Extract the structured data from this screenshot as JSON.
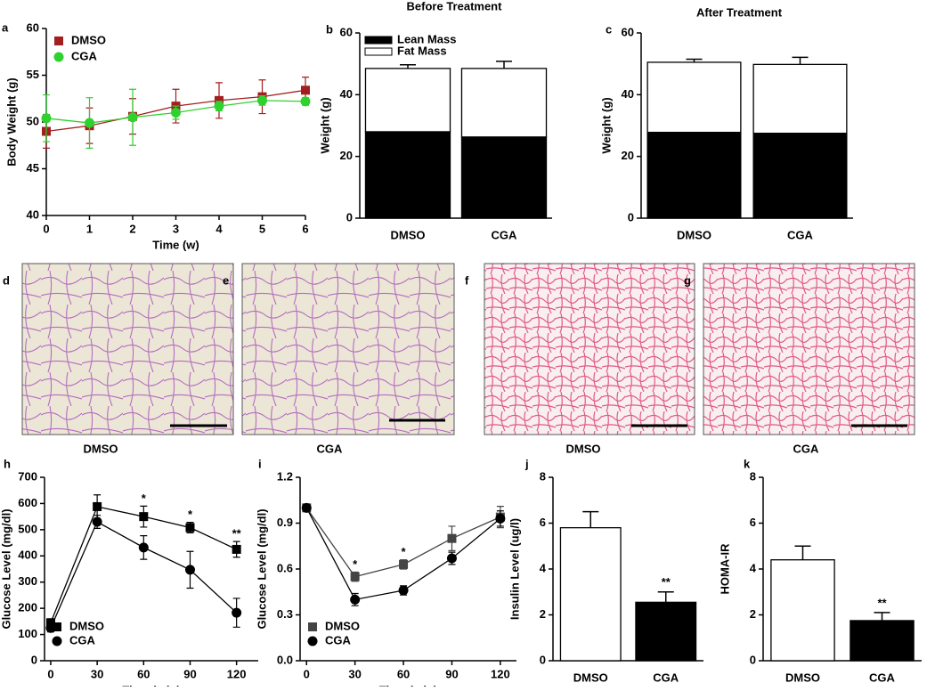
{
  "chart_data": [
    {
      "type": "line",
      "panel": "a",
      "ylabel": "Body Weight (g)",
      "xlabel": "Time (w)",
      "x": [
        0,
        1,
        2,
        3,
        4,
        5,
        6
      ],
      "xlim": [
        0,
        6
      ],
      "xticks": [
        0,
        1,
        2,
        3,
        4,
        5,
        6
      ],
      "ylim": [
        40,
        60
      ],
      "yticks": [
        40,
        45,
        50,
        55,
        60
      ],
      "legend": "upper-left",
      "series": [
        {
          "name": "DMSO",
          "color": "#a31f1f",
          "marker": "square",
          "values": [
            49,
            49.6,
            50.6,
            51.7,
            52.3,
            52.7,
            53.4
          ],
          "errors": [
            1.8,
            1.9,
            1.9,
            1.8,
            1.9,
            1.8,
            1.4
          ]
        },
        {
          "name": "CGA",
          "color": "#2fd12f",
          "marker": "circle",
          "values": [
            50.4,
            49.9,
            50.5,
            51,
            51.7,
            52.3,
            52.2
          ],
          "errors": [
            2.5,
            2.7,
            3,
            0.7,
            0.5,
            0.5,
            0.4
          ]
        }
      ]
    },
    {
      "type": "stacked-bar",
      "panel": "b",
      "title": "Before Treatment",
      "ylabel": "Weight (g)",
      "categories": [
        "DMSO",
        "CGA"
      ],
      "ylim": [
        0,
        60
      ],
      "yticks": [
        0,
        20,
        40,
        60
      ],
      "legend": "upper-left",
      "series": [
        {
          "name": "Lean Mass",
          "color": "#000000",
          "values": [
            28,
            26.3
          ],
          "errors": [
            1.5,
            1.2
          ]
        },
        {
          "name": "Fat Mass",
          "color": "#ffffff",
          "values": [
            20.5,
            22.2
          ],
          "errors": [
            1.2,
            2.3
          ]
        }
      ]
    },
    {
      "type": "stacked-bar",
      "panel": "c",
      "title": "After Treatment",
      "ylabel": "Weight (g)",
      "categories": [
        "DMSO",
        "CGA"
      ],
      "ylim": [
        0,
        60
      ],
      "yticks": [
        0,
        20,
        40,
        60
      ],
      "series": [
        {
          "name": "Lean Mass",
          "color": "#000000",
          "values": [
            27.8,
            27.5
          ],
          "errors": [
            1,
            1.3
          ]
        },
        {
          "name": "Fat Mass",
          "color": "#ffffff",
          "values": [
            22.7,
            22.3
          ],
          "errors": [
            1,
            2.3
          ]
        }
      ]
    },
    {
      "type": "line",
      "panel": "h",
      "ylabel": "Glucose Level (mg/dl)",
      "xlabel": "Time (min)",
      "x": [
        0,
        30,
        60,
        90,
        120
      ],
      "xlim": [
        -4,
        134
      ],
      "xticks": [
        0,
        30,
        60,
        90,
        120
      ],
      "ylim": [
        0,
        700
      ],
      "yticks": [
        0,
        100,
        200,
        300,
        400,
        500,
        600,
        700
      ],
      "legend": "lower-left",
      "significance": [
        null,
        null,
        "*",
        "*",
        "**"
      ],
      "series": [
        {
          "name": "DMSO",
          "color": "#000000",
          "marker": "square",
          "values": [
            145,
            588,
            550,
            508,
            425
          ],
          "errors": [
            15,
            45,
            40,
            20,
            30
          ]
        },
        {
          "name": "CGA",
          "color": "#000000",
          "marker": "circle",
          "values": [
            125,
            530,
            432,
            347,
            183
          ],
          "errors": [
            15,
            25,
            45,
            70,
            55
          ]
        }
      ]
    },
    {
      "type": "line",
      "panel": "i",
      "ylabel": "Glucose Level (mg/dl)",
      "xlabel": "Time (min)",
      "x": [
        0,
        30,
        60,
        90,
        120
      ],
      "xlim": [
        -4,
        130
      ],
      "xticks": [
        0,
        30,
        60,
        90,
        120
      ],
      "ylim": [
        0,
        1.2
      ],
      "yticks": [
        {
          "value": 0,
          "label": "0.0"
        },
        0.3,
        0.6,
        0.9,
        1.2
      ],
      "legend": "lower-left",
      "significance": [
        null,
        "*",
        "*",
        null,
        null
      ],
      "series": [
        {
          "name": "DMSO",
          "color": "#444444",
          "marker": "square",
          "values": [
            1,
            0.55,
            0.63,
            0.8,
            0.94
          ],
          "errors": [
            0.02,
            0.03,
            0.03,
            0.08,
            0.07
          ]
        },
        {
          "name": "CGA",
          "color": "#000000",
          "marker": "circle",
          "values": [
            1,
            0.4,
            0.46,
            0.67,
            0.93
          ],
          "errors": [
            0.02,
            0.04,
            0.03,
            0.04,
            0.05
          ]
        }
      ]
    },
    {
      "type": "bar",
      "panel": "j",
      "ylabel": "Insulin Level (ug/l)",
      "categories": [
        "DMSO",
        "CGA"
      ],
      "values": [
        5.8,
        2.55
      ],
      "errors": [
        0.7,
        0.45
      ],
      "colors": [
        "#ffffff",
        "#000000"
      ],
      "significance": [
        null,
        "**"
      ],
      "ylim": [
        0,
        8
      ],
      "yticks": [
        0,
        2,
        4,
        6,
        8
      ]
    },
    {
      "type": "bar",
      "panel": "k",
      "ylabel": "HOMA-IR",
      "categories": [
        "DMSO",
        "CGA"
      ],
      "values": [
        4.4,
        1.75
      ],
      "errors": [
        0.6,
        0.35
      ],
      "colors": [
        "#ffffff",
        "#000000"
      ],
      "significance": [
        null,
        "**"
      ],
      "ylim": [
        0,
        8
      ],
      "yticks": [
        0,
        2,
        4,
        6,
        8
      ]
    }
  ],
  "images": [
    {
      "panel": "d",
      "caption": "DMSO"
    },
    {
      "panel": "e",
      "caption": "CGA"
    },
    {
      "panel": "f",
      "caption": "DMSO"
    },
    {
      "panel": "g",
      "caption": "CGA"
    }
  ]
}
